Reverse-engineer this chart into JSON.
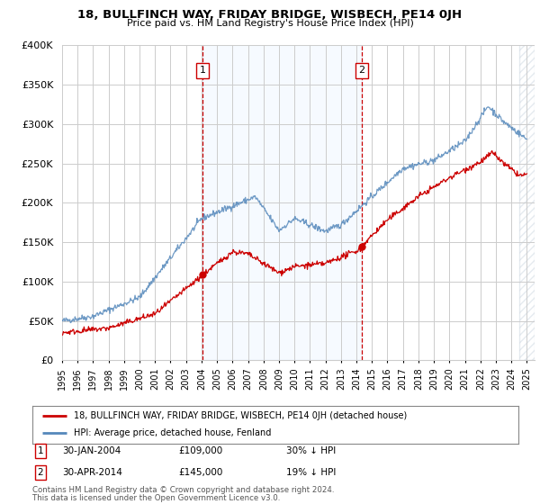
{
  "title": "18, BULLFINCH WAY, FRIDAY BRIDGE, WISBECH, PE14 0JH",
  "subtitle": "Price paid vs. HM Land Registry's House Price Index (HPI)",
  "legend_label_red": "18, BULLFINCH WAY, FRIDAY BRIDGE, WISBECH, PE14 0JH (detached house)",
  "legend_label_blue": "HPI: Average price, detached house, Fenland",
  "annotation1_label": "1",
  "annotation1_date": "30-JAN-2004",
  "annotation1_price": "£109,000",
  "annotation1_pct": "30% ↓ HPI",
  "annotation2_label": "2",
  "annotation2_date": "30-APR-2014",
  "annotation2_price": "£145,000",
  "annotation2_pct": "19% ↓ HPI",
  "footer1": "Contains HM Land Registry data © Crown copyright and database right 2024.",
  "footer2": "This data is licensed under the Open Government Licence v3.0.",
  "red_color": "#cc0000",
  "blue_color": "#5588bb",
  "shade_color": "#ddeeff",
  "background_color": "#ffffff",
  "grid_color": "#cccccc",
  "ylim": [
    0,
    400000
  ],
  "yticks": [
    0,
    50000,
    100000,
    150000,
    200000,
    250000,
    300000,
    350000,
    400000
  ],
  "sale1_x": 2004.08,
  "sale1_y": 109000,
  "sale2_x": 2014.33,
  "sale2_y": 145000,
  "xmin": 1995,
  "xmax": 2025.5,
  "hatch_start": 2024.5
}
